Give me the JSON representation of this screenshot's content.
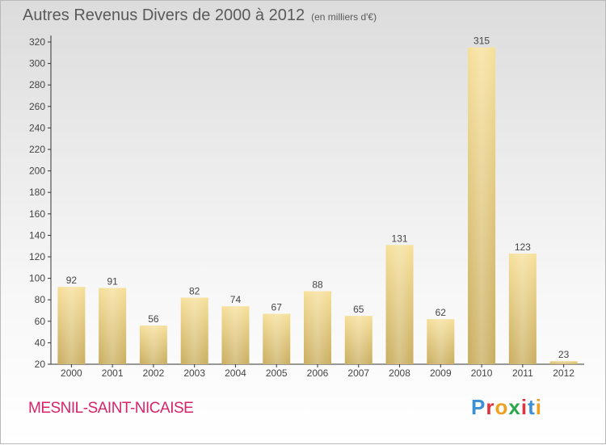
{
  "title": "Autres Revenus Divers de 2000 à 2012",
  "subtitle": "(en milliers d'€)",
  "place_name": "MESNIL-SAINT-NICAISE",
  "logo": {
    "text": "Proxiti",
    "letter_colors": [
      "#3a8fd8",
      "#e0323c",
      "#f0a020",
      "#2aa84a",
      "#e0323c",
      "#3a8fd8",
      "#f0a020"
    ]
  },
  "colors": {
    "bar_light": "#f6df98",
    "bar_dark": "#c9ad5e",
    "text": "#444444",
    "place": "#d5246a"
  },
  "chart_data": {
    "type": "bar",
    "categories": [
      "2000",
      "2001",
      "2002",
      "2003",
      "2004",
      "2005",
      "2006",
      "2007",
      "2008",
      "2009",
      "2010",
      "2011",
      "2012"
    ],
    "values": [
      92,
      91,
      56,
      82,
      74,
      67,
      88,
      65,
      131,
      62,
      315,
      123,
      23
    ],
    "ylim": [
      20,
      320
    ],
    "yticks": [
      20,
      40,
      60,
      80,
      100,
      120,
      140,
      160,
      180,
      200,
      220,
      240,
      260,
      280,
      300,
      320
    ],
    "grid": false,
    "data_labels": true
  }
}
